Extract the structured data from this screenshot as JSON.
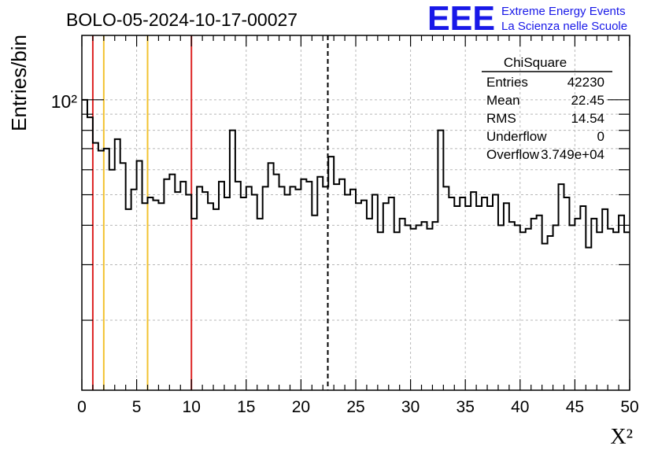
{
  "header": {
    "run_title": "BOLO-05-2024-10-17-00027",
    "logo_text": "EEE",
    "logo_line1": "Extreme Energy Events",
    "logo_line2": "La Scienza nelle Scuole"
  },
  "stats_box": {
    "title": "ChiSquare",
    "rows": [
      {
        "label": "Entries",
        "value": "42230"
      },
      {
        "label": "Mean",
        "value": "22.45"
      },
      {
        "label": "RMS",
        "value": "14.54"
      },
      {
        "label": "Underflow",
        "value": "0"
      },
      {
        "label": "Overflow",
        "value": "3.749e+04"
      }
    ]
  },
  "colors": {
    "red_line": "#dd2222",
    "yellow_line": "#f2c230",
    "logo_blue": "#1818e8",
    "grid": "#b8b8b8"
  },
  "chart_data": {
    "type": "histogram",
    "title": "BOLO-05-2024-10-17-00027",
    "xlabel": "Χ²",
    "ylabel": "Entries/bin",
    "xlim": [
      0,
      50
    ],
    "ylim": [
      12,
      160
    ],
    "yscale": "log",
    "grid": true,
    "bin_width": 0.5,
    "x_ticks": [
      "0",
      "5",
      "10",
      "15",
      "20",
      "25",
      "30",
      "35",
      "40",
      "45",
      "50"
    ],
    "x_tick_values": [
      0,
      5,
      10,
      15,
      20,
      25,
      30,
      35,
      40,
      45,
      50
    ],
    "y_tick_labels": [
      {
        "value": 100,
        "label": "10²"
      }
    ],
    "values": [
      100,
      88,
      73,
      69,
      70,
      60,
      75,
      63,
      45,
      52,
      64,
      47,
      49,
      48,
      47,
      56,
      58,
      51,
      55,
      50,
      42,
      53,
      51,
      47,
      45,
      55,
      49,
      80,
      55,
      49,
      53,
      50,
      42,
      53,
      63,
      58,
      53,
      50,
      53,
      52,
      56,
      55,
      43,
      57,
      53,
      66,
      54,
      56,
      50,
      52,
      47,
      48,
      42,
      50,
      38,
      47,
      49,
      38,
      42,
      40,
      39,
      40,
      41,
      39,
      41,
      80,
      53,
      49,
      46,
      49,
      46,
      51,
      46,
      49,
      46,
      50,
      40,
      47,
      41,
      40,
      38,
      39,
      42,
      43,
      35,
      37,
      40,
      54,
      49,
      40,
      42,
      46,
      34,
      42,
      38,
      45,
      39,
      38,
      43,
      38
    ]
  },
  "markers": {
    "red_x": [
      1,
      10
    ],
    "yellow_x": [
      2,
      6
    ],
    "dashed_x": [
      22.45
    ]
  }
}
